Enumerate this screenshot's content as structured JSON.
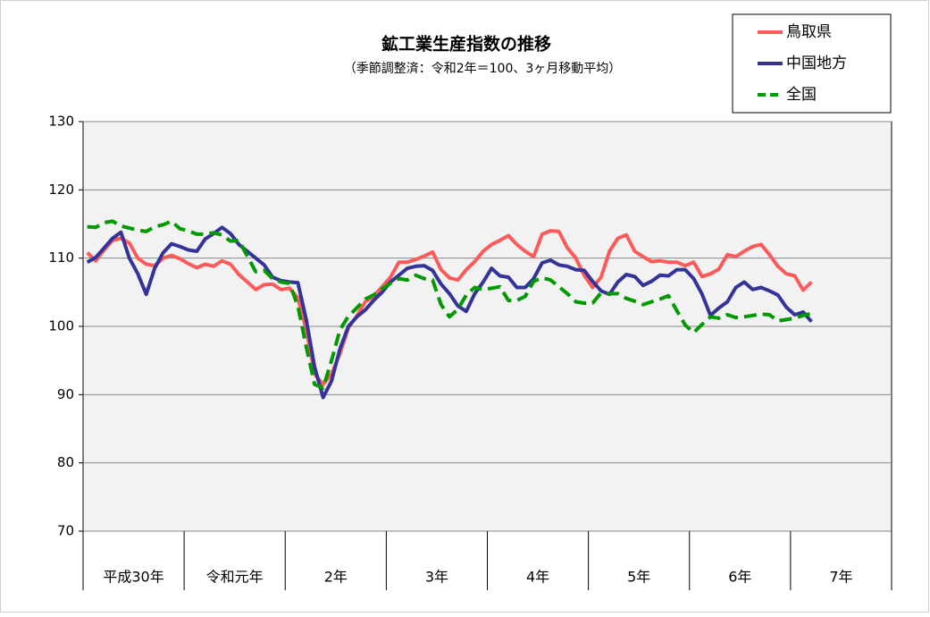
{
  "chart_data": {
    "type": "line",
    "title": "鉱工業生産指数の推移",
    "subtitle": "（季節調整済：令和2年＝100、3ヶ月移動平均）",
    "categories": [
      null,
      null,
      null,
      null,
      null,
      null,
      "平成30年",
      null,
      null,
      null,
      null,
      null,
      null,
      null,
      null,
      null,
      null,
      null,
      "令和元年",
      null,
      null,
      null,
      null,
      null,
      null,
      null,
      null,
      null,
      null,
      null,
      "2年",
      null,
      null,
      null,
      null,
      null,
      null,
      null,
      null,
      null,
      null,
      null,
      "3年",
      null,
      null,
      null,
      null,
      null,
      null,
      null,
      null,
      null,
      null,
      null,
      "4年",
      null,
      null,
      null,
      null,
      null,
      null,
      null,
      null,
      null,
      null,
      null,
      "5年",
      null,
      null,
      null,
      null,
      null,
      null,
      null,
      null,
      null,
      null,
      null,
      "6年",
      null,
      null,
      null,
      null,
      null,
      null,
      null,
      null,
      null,
      null,
      null,
      "7年",
      null,
      null,
      null,
      null,
      null
    ],
    "series": [
      {
        "name": "鳥取県",
        "color": "#ff5a5a",
        "dash": false,
        "values": [
          110.8,
          109.6,
          111.2,
          112.6,
          112.9,
          112.2,
          110,
          109.1,
          108.9,
          110,
          110.4,
          109.9,
          109.2,
          108.6,
          109.1,
          108.8,
          109.6,
          109.1,
          107.6,
          106.5,
          105.4,
          106.1,
          106.2,
          105.4,
          105.6,
          104.2,
          99.5,
          93,
          91.5,
          93,
          96,
          99.8,
          101.5,
          103.6,
          104.4,
          105.8,
          107.2,
          109.4,
          109.4,
          109.8,
          110.3,
          110.9,
          108.3,
          107.1,
          106.8,
          108.3,
          109.5,
          111,
          112,
          112.6,
          113.3,
          112,
          111,
          110.2,
          113.5,
          114,
          113.9,
          111.5,
          110,
          107.5,
          105.7,
          107.2,
          111,
          112.9,
          113.4,
          111,
          110.2,
          109.5,
          109.6,
          109.4,
          109.4,
          108.9,
          109.4,
          107.3,
          107.7,
          108.4,
          110.5,
          110.2,
          111,
          111.7,
          112,
          110.5,
          108.8,
          107.7,
          107.4,
          105.3,
          106.5,
          null,
          null,
          null,
          null,
          null,
          null,
          null,
          null,
          null
        ]
      },
      {
        "name": "中国地方",
        "color": "#333399",
        "dash": false,
        "values": [
          109.4,
          110.1,
          111.5,
          112.9,
          113.8,
          110,
          107.7,
          104.7,
          108.5,
          110.8,
          112.1,
          111.7,
          111.2,
          111,
          112.8,
          113.6,
          114.5,
          113.6,
          112,
          111,
          110,
          109,
          107.2,
          106.7,
          106.5,
          106.4,
          101,
          94,
          89.6,
          92,
          96.7,
          100,
          101.4,
          102.4,
          103.8,
          105,
          106.5,
          107.5,
          108.5,
          108.8,
          108.9,
          108.2,
          106.2,
          104.8,
          103,
          102.2,
          104.8,
          106.5,
          108.5,
          107.4,
          107.2,
          105.7,
          105.7,
          107,
          109.3,
          109.7,
          109,
          108.8,
          108.3,
          108.2,
          106.6,
          105.2,
          104.7,
          106.5,
          107.6,
          107.3,
          106,
          106.6,
          107.5,
          107.4,
          108.3,
          108.3,
          107,
          104.7,
          101.6,
          102.7,
          103.6,
          105.7,
          106.5,
          105.4,
          105.7,
          105.2,
          104.6,
          102.8,
          101.7,
          102.1,
          100.7,
          null,
          null,
          null,
          null,
          null,
          null,
          null,
          null,
          null
        ]
      },
      {
        "name": "全国",
        "color": "#009900",
        "dash": true,
        "values": [
          114.6,
          114.5,
          115.2,
          115.4,
          114.7,
          114.4,
          114.1,
          113.9,
          114.6,
          114.9,
          115.4,
          114.3,
          114,
          113.5,
          113.5,
          113.7,
          113.4,
          112.5,
          112.6,
          110.3,
          108,
          108.2,
          107,
          106.5,
          106.3,
          103,
          97,
          91.5,
          91,
          95,
          99.5,
          101.5,
          102.7,
          104,
          104.6,
          105.5,
          106.3,
          107,
          106.8,
          107.5,
          107,
          106.8,
          103.2,
          101.4,
          102.5,
          104.6,
          105.7,
          105.4,
          105.6,
          105.8,
          103.8,
          103.8,
          104.4,
          106.6,
          107.1,
          106.8,
          105.8,
          104.8,
          103.6,
          103.4,
          103.4,
          104.9,
          104.8,
          104.8,
          104.1,
          103.7,
          103.2,
          103.6,
          104,
          104.5,
          102.3,
          100.2,
          99.1,
          100.3,
          101.4,
          101.2,
          101.7,
          101.3,
          101.4,
          101.6,
          101.8,
          101.7,
          100.8,
          101,
          101.2,
          101.6,
          101.9,
          null,
          null,
          null,
          null,
          null,
          null,
          null,
          null,
          null
        ]
      }
    ],
    "ylim": [
      70,
      130
    ],
    "yticks": [
      70,
      80,
      90,
      100,
      110,
      120,
      130
    ],
    "grid": true,
    "legend": "top-right"
  }
}
